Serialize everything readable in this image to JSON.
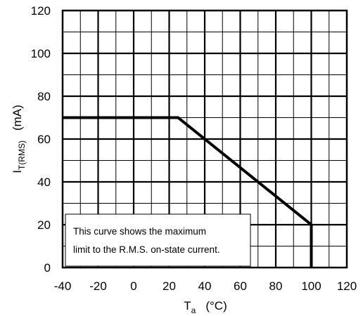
{
  "chart_data": {
    "type": "line",
    "title": "",
    "xlabel": {
      "main": "T",
      "sub": "a",
      "unit": "(°C)"
    },
    "ylabel": {
      "main": "I",
      "sub": "T(RMS)",
      "unit": "(mA)"
    },
    "xlim": [
      -40,
      120
    ],
    "ylim": [
      0,
      120
    ],
    "x_ticks": [
      -40,
      -20,
      0,
      20,
      40,
      60,
      80,
      100,
      120
    ],
    "y_ticks": [
      0,
      20,
      40,
      60,
      80,
      100,
      120
    ],
    "x_tick_labels": [
      "-40",
      "-20",
      "0",
      "20",
      "40",
      "60",
      "80",
      "100",
      "120"
    ],
    "y_tick_labels": [
      "0",
      "20",
      "40",
      "60",
      "80",
      "100",
      "120"
    ],
    "minor_grid_step": {
      "x": 10,
      "y": 10
    },
    "grid": true,
    "series": [
      {
        "x": [
          -40,
          25,
          100,
          100
        ],
        "y": [
          70,
          70,
          20,
          0
        ]
      }
    ],
    "annotation": {
      "lines": [
        "This curve shows the maximum",
        "limit to the R.M.S. on-state current."
      ],
      "placement": "bottom-left"
    },
    "colors": {
      "line": "#000000",
      "grid": "#000000",
      "background": "#ffffff"
    }
  }
}
